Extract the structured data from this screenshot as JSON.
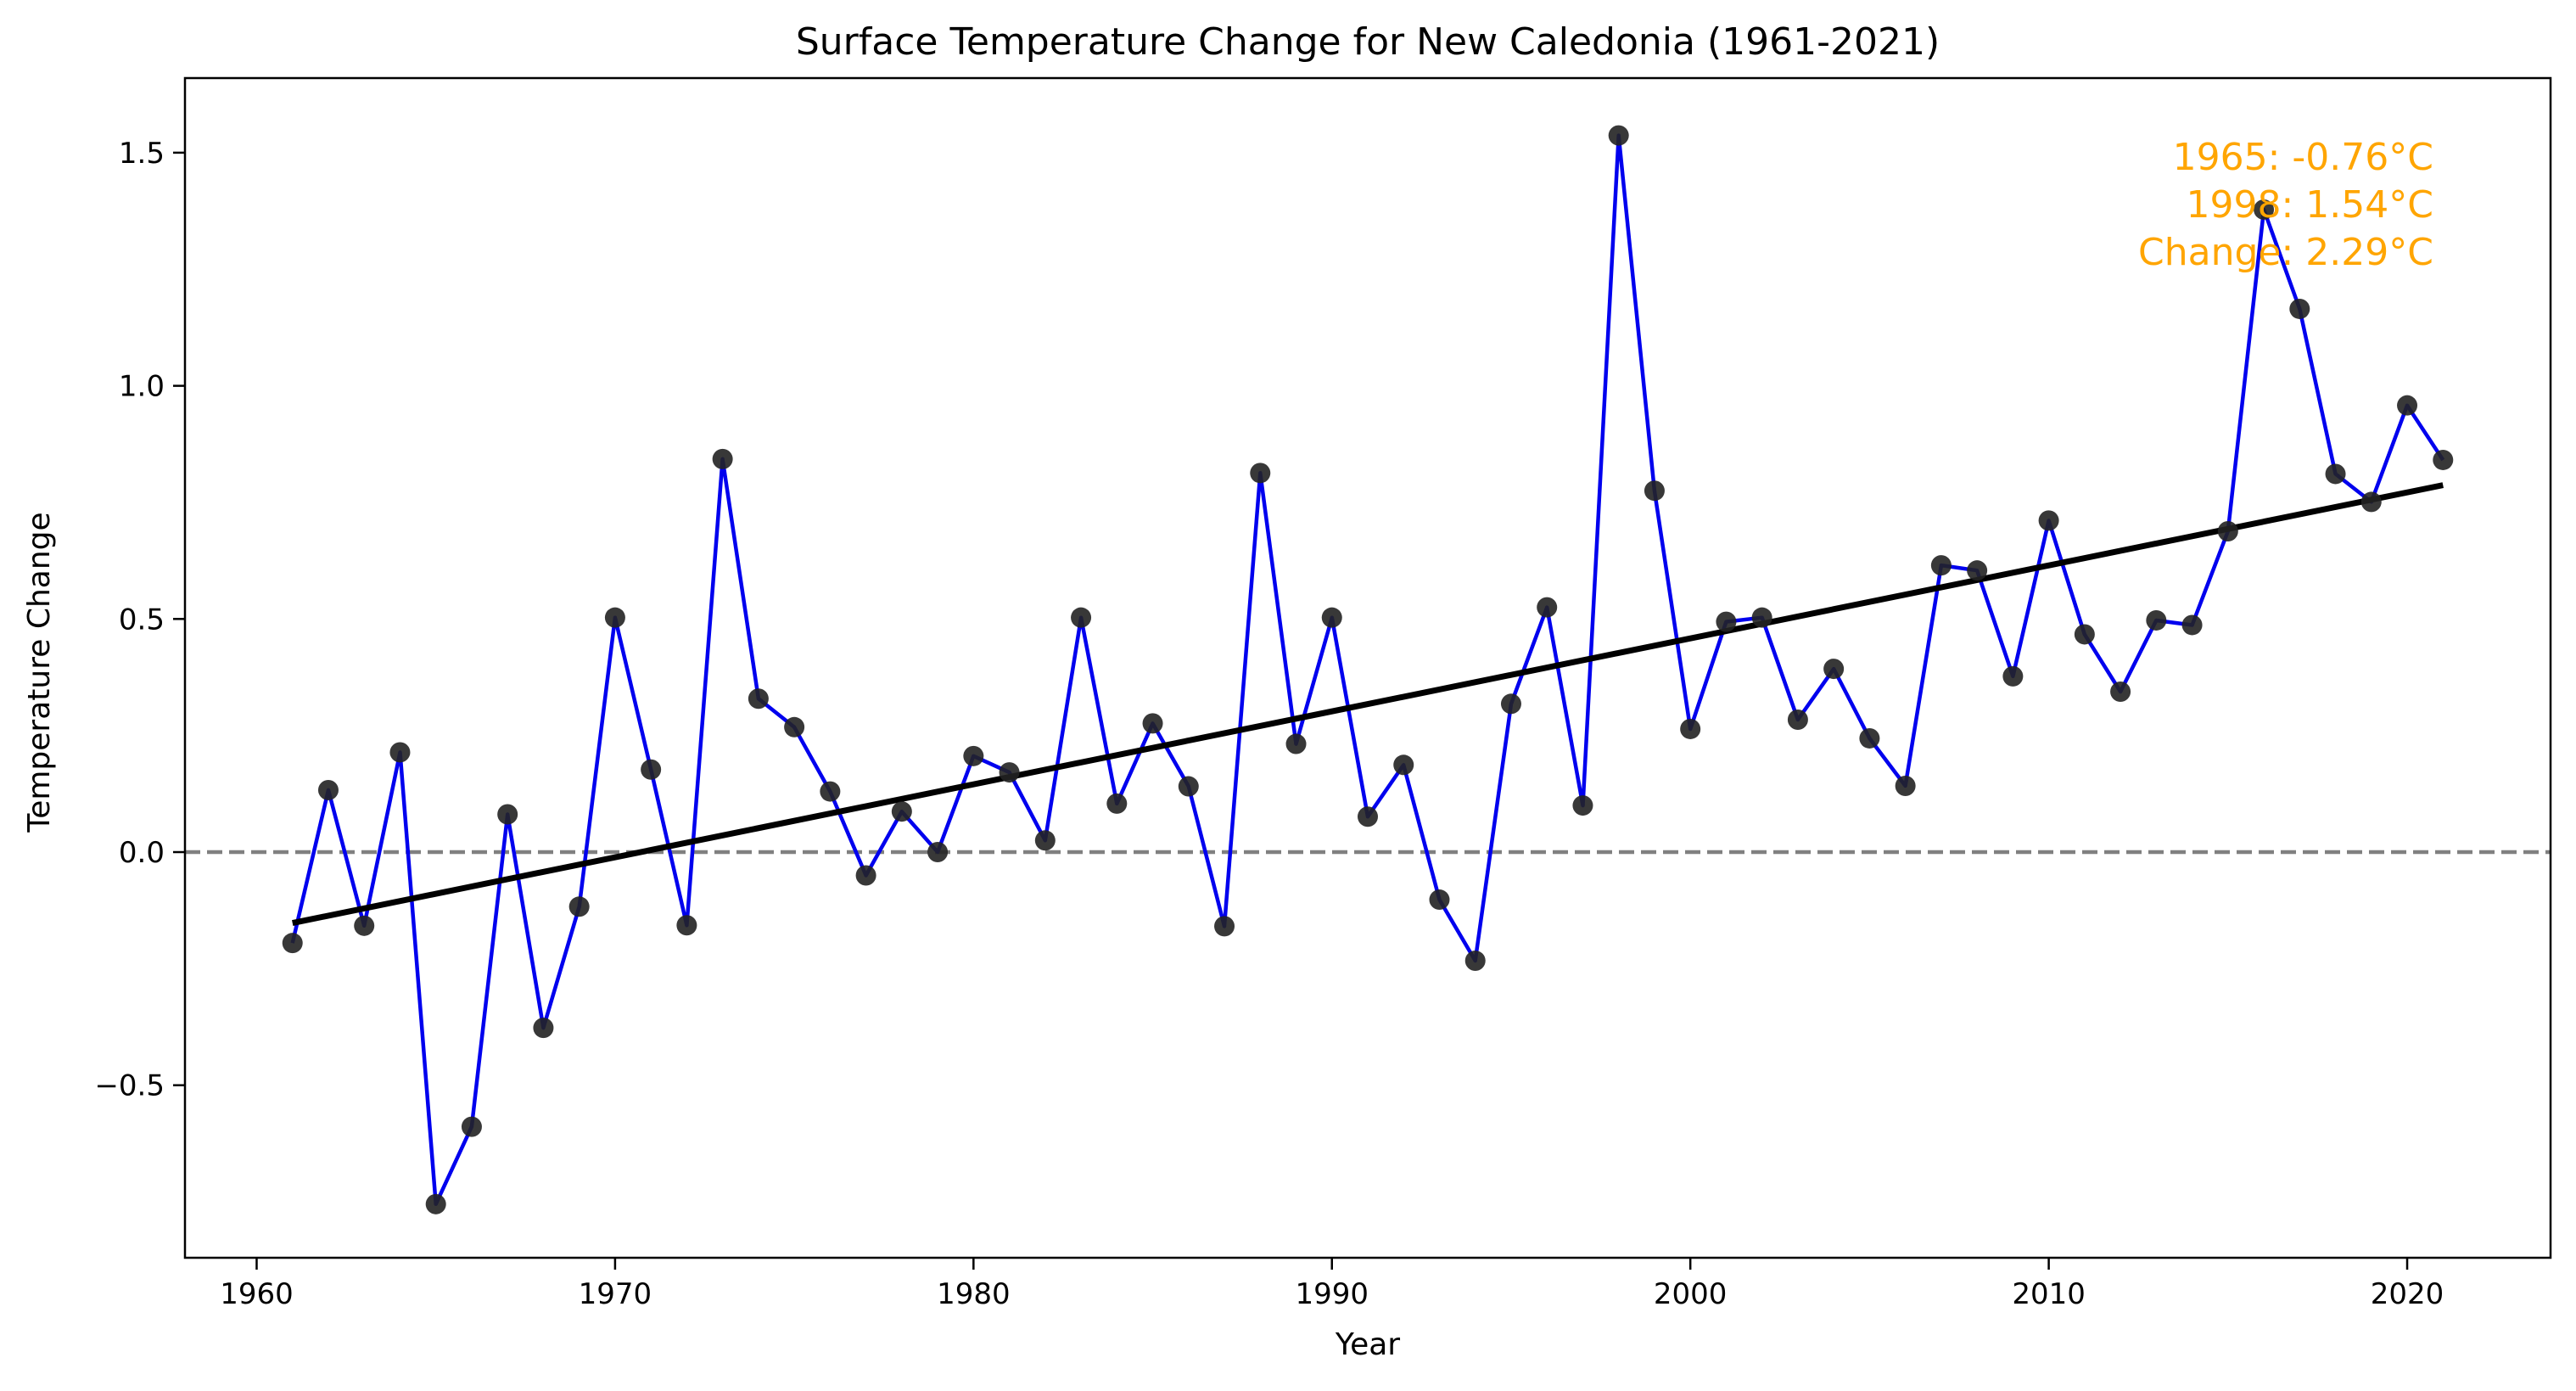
{
  "chart_data": {
    "type": "line",
    "title": "Surface Temperature Change for New Caledonia (1961-2021)",
    "xlabel": "Year",
    "ylabel": "Temperature Change",
    "xlim": [
      1958.0,
      2024.0
    ],
    "ylim": [
      -0.87,
      1.66
    ],
    "xticks": [
      1960,
      1970,
      1980,
      1990,
      2000,
      2010,
      2020
    ],
    "yticks": [
      -0.5,
      0.0,
      0.5,
      1.0,
      1.5
    ],
    "ytick_labels": [
      "−0.5",
      "0.0",
      "0.5",
      "1.0",
      "1.5"
    ],
    "grid": false,
    "legend": "none",
    "series": [
      {
        "x": [
          1961,
          1962,
          1963,
          1964,
          1965,
          1966,
          1967,
          1968,
          1969,
          1970,
          1971,
          1972,
          1973,
          1974,
          1975,
          1976,
          1977,
          1978,
          1979,
          1980,
          1981,
          1982,
          1983,
          1984,
          1985,
          1986,
          1987,
          1988,
          1989,
          1990,
          1991,
          1992,
          1993,
          1994,
          1995,
          1996,
          1997,
          1998,
          1999,
          2000,
          2001,
          2002,
          2003,
          2004,
          2005,
          2006,
          2007,
          2008,
          2009,
          2010,
          2011,
          2012,
          2013,
          2014,
          2015,
          2016,
          2017,
          2018,
          2019,
          2020,
          2021
        ],
        "y": [
          -0.195,
          0.133,
          -0.158,
          0.214,
          -0.755,
          -0.589,
          0.081,
          -0.377,
          -0.117,
          0.503,
          0.177,
          -0.157,
          0.843,
          0.329,
          0.268,
          0.13,
          -0.05,
          0.087,
          0.0,
          0.206,
          0.171,
          0.025,
          0.503,
          0.104,
          0.276,
          0.141,
          -0.159,
          0.813,
          0.232,
          0.503,
          0.076,
          0.187,
          -0.102,
          -0.233,
          0.318,
          0.525,
          0.1,
          1.537,
          0.775,
          0.264,
          0.494,
          0.503,
          0.284,
          0.393,
          0.244,
          0.142,
          0.615,
          0.604,
          0.377,
          0.711,
          0.467,
          0.344,
          0.497,
          0.487,
          0.688,
          1.378,
          1.165,
          0.811,
          0.751,
          0.958,
          0.841
        ],
        "color": "#0000ee",
        "marker_color": "#222222"
      }
    ],
    "trendline": {
      "x": [
        1961,
        2021
      ],
      "y": [
        -0.152,
        0.787
      ],
      "color": "#000000"
    },
    "reference_line": {
      "y": 0.0,
      "color": "#808080",
      "style": "dashed"
    },
    "annotation": {
      "lines": [
        "1965: -0.76°C",
        "1998: 1.54°C",
        "Change: 2.29°C"
      ],
      "color": "#ffa500"
    }
  }
}
